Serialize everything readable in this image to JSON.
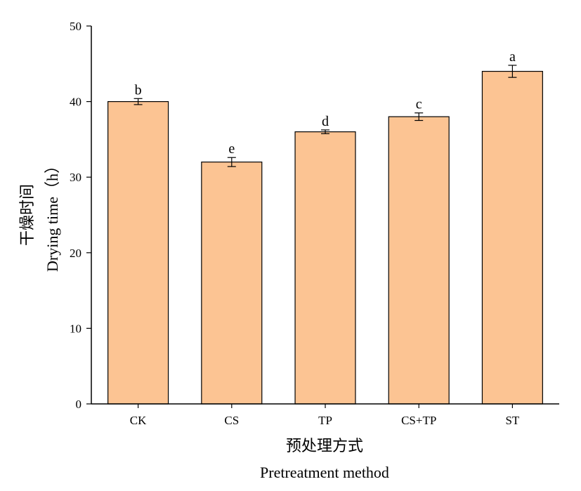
{
  "chart_data": {
    "type": "bar",
    "categories": [
      "CK",
      "CS",
      "TP",
      "CS+TP",
      "ST"
    ],
    "values": [
      40,
      32,
      36,
      38,
      44
    ],
    "errors": [
      0.4,
      0.6,
      0.25,
      0.5,
      0.8
    ],
    "significance_letters": [
      "b",
      "e",
      "d",
      "c",
      "a"
    ],
    "xlabel_cn": "预处理方式",
    "xlabel_en": "Pretreatment method",
    "ylabel_cn": "干燥时间",
    "ylabel_en": "Drying time（h）",
    "ylim": [
      0,
      50
    ],
    "yticks": [
      0,
      10,
      20,
      30,
      40,
      50
    ],
    "grid": false,
    "bar_color": "#FCC493",
    "bar_edge_color": "#000000"
  }
}
